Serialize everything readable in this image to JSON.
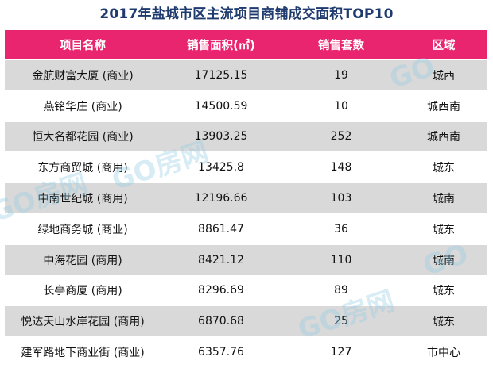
{
  "title": "2017年盐城市区主流项目商铺成交面积TOP10",
  "table": {
    "headers": [
      "项目名称",
      "销售面积(㎡)",
      "销售套数",
      "区域"
    ],
    "rows": [
      {
        "name": "金航财富大厦 (商业)",
        "area": "17125.15",
        "units": "19",
        "region": "城西"
      },
      {
        "name": "燕铭华庄 (商业)",
        "area": "14500.59",
        "units": "10",
        "region": "城西南"
      },
      {
        "name": "恒大名都花园 (商业)",
        "area": "13903.25",
        "units": "252",
        "region": "城西南"
      },
      {
        "name": "东方商贸城 (商用)",
        "area": "13425.8",
        "units": "148",
        "region": "城东"
      },
      {
        "name": "中南世纪城 (商用)",
        "area": "12196.66",
        "units": "103",
        "region": "城南"
      },
      {
        "name": "绿地商务城 (商业)",
        "area": "8861.47",
        "units": "36",
        "region": "城东"
      },
      {
        "name": "中海花园 (商用)",
        "area": "8421.12",
        "units": "110",
        "region": "城南"
      },
      {
        "name": "长亭商厦 (商用)",
        "area": "8296.69",
        "units": "89",
        "region": "城东"
      },
      {
        "name": "悦达天山水岸花园 (商用)",
        "area": "6870.68",
        "units": "25",
        "region": "城东"
      },
      {
        "name": "建军路地下商业街 (商业)",
        "area": "6357.76",
        "units": "127",
        "region": "市中心"
      }
    ]
  },
  "watermark": {
    "text": "GO房网",
    "text_short": "GO"
  },
  "colors": {
    "title": "#1f3a6e",
    "header_bg": "#e8256e",
    "header_text": "#ffffff",
    "row_shaded": "#d9d9d9",
    "row_plain": "#ffffff",
    "watermark": "#96cde1"
  }
}
